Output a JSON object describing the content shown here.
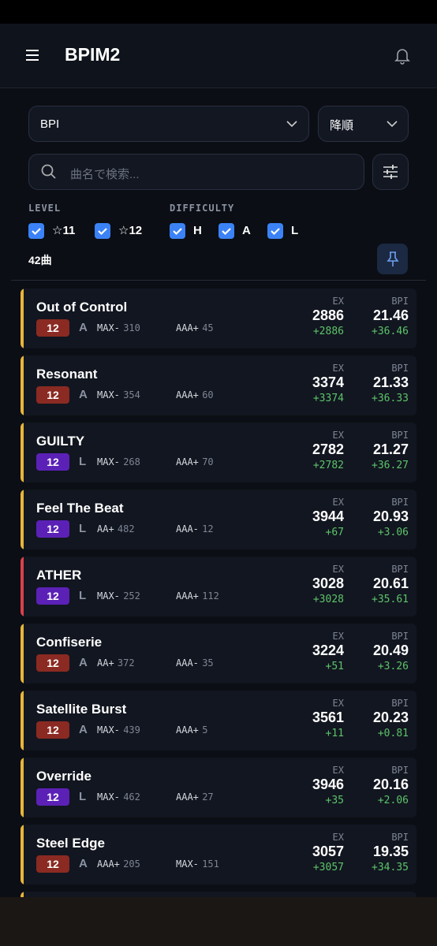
{
  "header": {
    "title": "BPIM2"
  },
  "sort": {
    "field": "BPI",
    "order": "降順"
  },
  "search": {
    "placeholder": "曲名で検索..."
  },
  "filters": {
    "level": {
      "label": "LEVEL",
      "options": [
        "☆11",
        "☆12"
      ]
    },
    "difficulty": {
      "label": "DIFFICULTY",
      "options": [
        "H",
        "A",
        "L"
      ]
    }
  },
  "count": "42曲",
  "columns": [
    "EX",
    "BPI"
  ],
  "difficulty_colors": {
    "A": "#8a2a22",
    "L": "#5b21b6"
  },
  "songs": [
    {
      "title": "Out of Control",
      "level": 12,
      "difficulty": "A",
      "stats": [
        {
          "label": "MAX-",
          "value": 310
        },
        {
          "label": "AAA+",
          "value": 45
        }
      ],
      "ex": 2886,
      "ex_diff": "+2886",
      "bpi": 21.46,
      "bpi_diff": "+36.46",
      "accent": "#e8b53a"
    },
    {
      "title": "Resonant",
      "level": 12,
      "difficulty": "A",
      "stats": [
        {
          "label": "MAX-",
          "value": 354
        },
        {
          "label": "AAA+",
          "value": 60
        }
      ],
      "ex": 3374,
      "ex_diff": "+3374",
      "bpi": 21.33,
      "bpi_diff": "+36.33",
      "accent": "#e8b53a"
    },
    {
      "title": "GUILTY",
      "level": 12,
      "difficulty": "L",
      "stats": [
        {
          "label": "MAX-",
          "value": 268
        },
        {
          "label": "AAA+",
          "value": 70
        }
      ],
      "ex": 2782,
      "ex_diff": "+2782",
      "bpi": 21.27,
      "bpi_diff": "+36.27",
      "accent": "#e8b53a"
    },
    {
      "title": "Feel The Beat",
      "level": 12,
      "difficulty": "L",
      "stats": [
        {
          "label": "AA+",
          "value": 482
        },
        {
          "label": "AAA-",
          "value": 12
        }
      ],
      "ex": 3944,
      "ex_diff": "+67",
      "bpi": 20.93,
      "bpi_diff": "+3.06",
      "accent": "#e8b53a"
    },
    {
      "title": "ATHER",
      "level": 12,
      "difficulty": "L",
      "stats": [
        {
          "label": "MAX-",
          "value": 252
        },
        {
          "label": "AAA+",
          "value": 112
        }
      ],
      "ex": 3028,
      "ex_diff": "+3028",
      "bpi": 20.61,
      "bpi_diff": "+35.61",
      "accent": "#d9414a"
    },
    {
      "title": "Confiserie",
      "level": 12,
      "difficulty": "A",
      "stats": [
        {
          "label": "AA+",
          "value": 372
        },
        {
          "label": "AAA-",
          "value": 35
        }
      ],
      "ex": 3224,
      "ex_diff": "+51",
      "bpi": 20.49,
      "bpi_diff": "+3.26",
      "accent": "#e8b53a"
    },
    {
      "title": "Satellite Burst",
      "level": 12,
      "difficulty": "A",
      "stats": [
        {
          "label": "MAX-",
          "value": 439
        },
        {
          "label": "AAA+",
          "value": 5
        }
      ],
      "ex": 3561,
      "ex_diff": "+11",
      "bpi": 20.23,
      "bpi_diff": "+0.81",
      "accent": "#e8b53a"
    },
    {
      "title": "Override",
      "level": 12,
      "difficulty": "L",
      "stats": [
        {
          "label": "MAX-",
          "value": 462
        },
        {
          "label": "AAA+",
          "value": 27
        }
      ],
      "ex": 3946,
      "ex_diff": "+35",
      "bpi": 20.16,
      "bpi_diff": "+2.06",
      "accent": "#e8b53a"
    },
    {
      "title": "Steel Edge",
      "level": 12,
      "difficulty": "A",
      "stats": [
        {
          "label": "AAA+",
          "value": 205
        },
        {
          "label": "MAX-",
          "value": 151
        }
      ],
      "ex": 3057,
      "ex_diff": "+3057",
      "bpi": 19.35,
      "bpi_diff": "+34.35",
      "accent": "#e8b53a"
    }
  ]
}
